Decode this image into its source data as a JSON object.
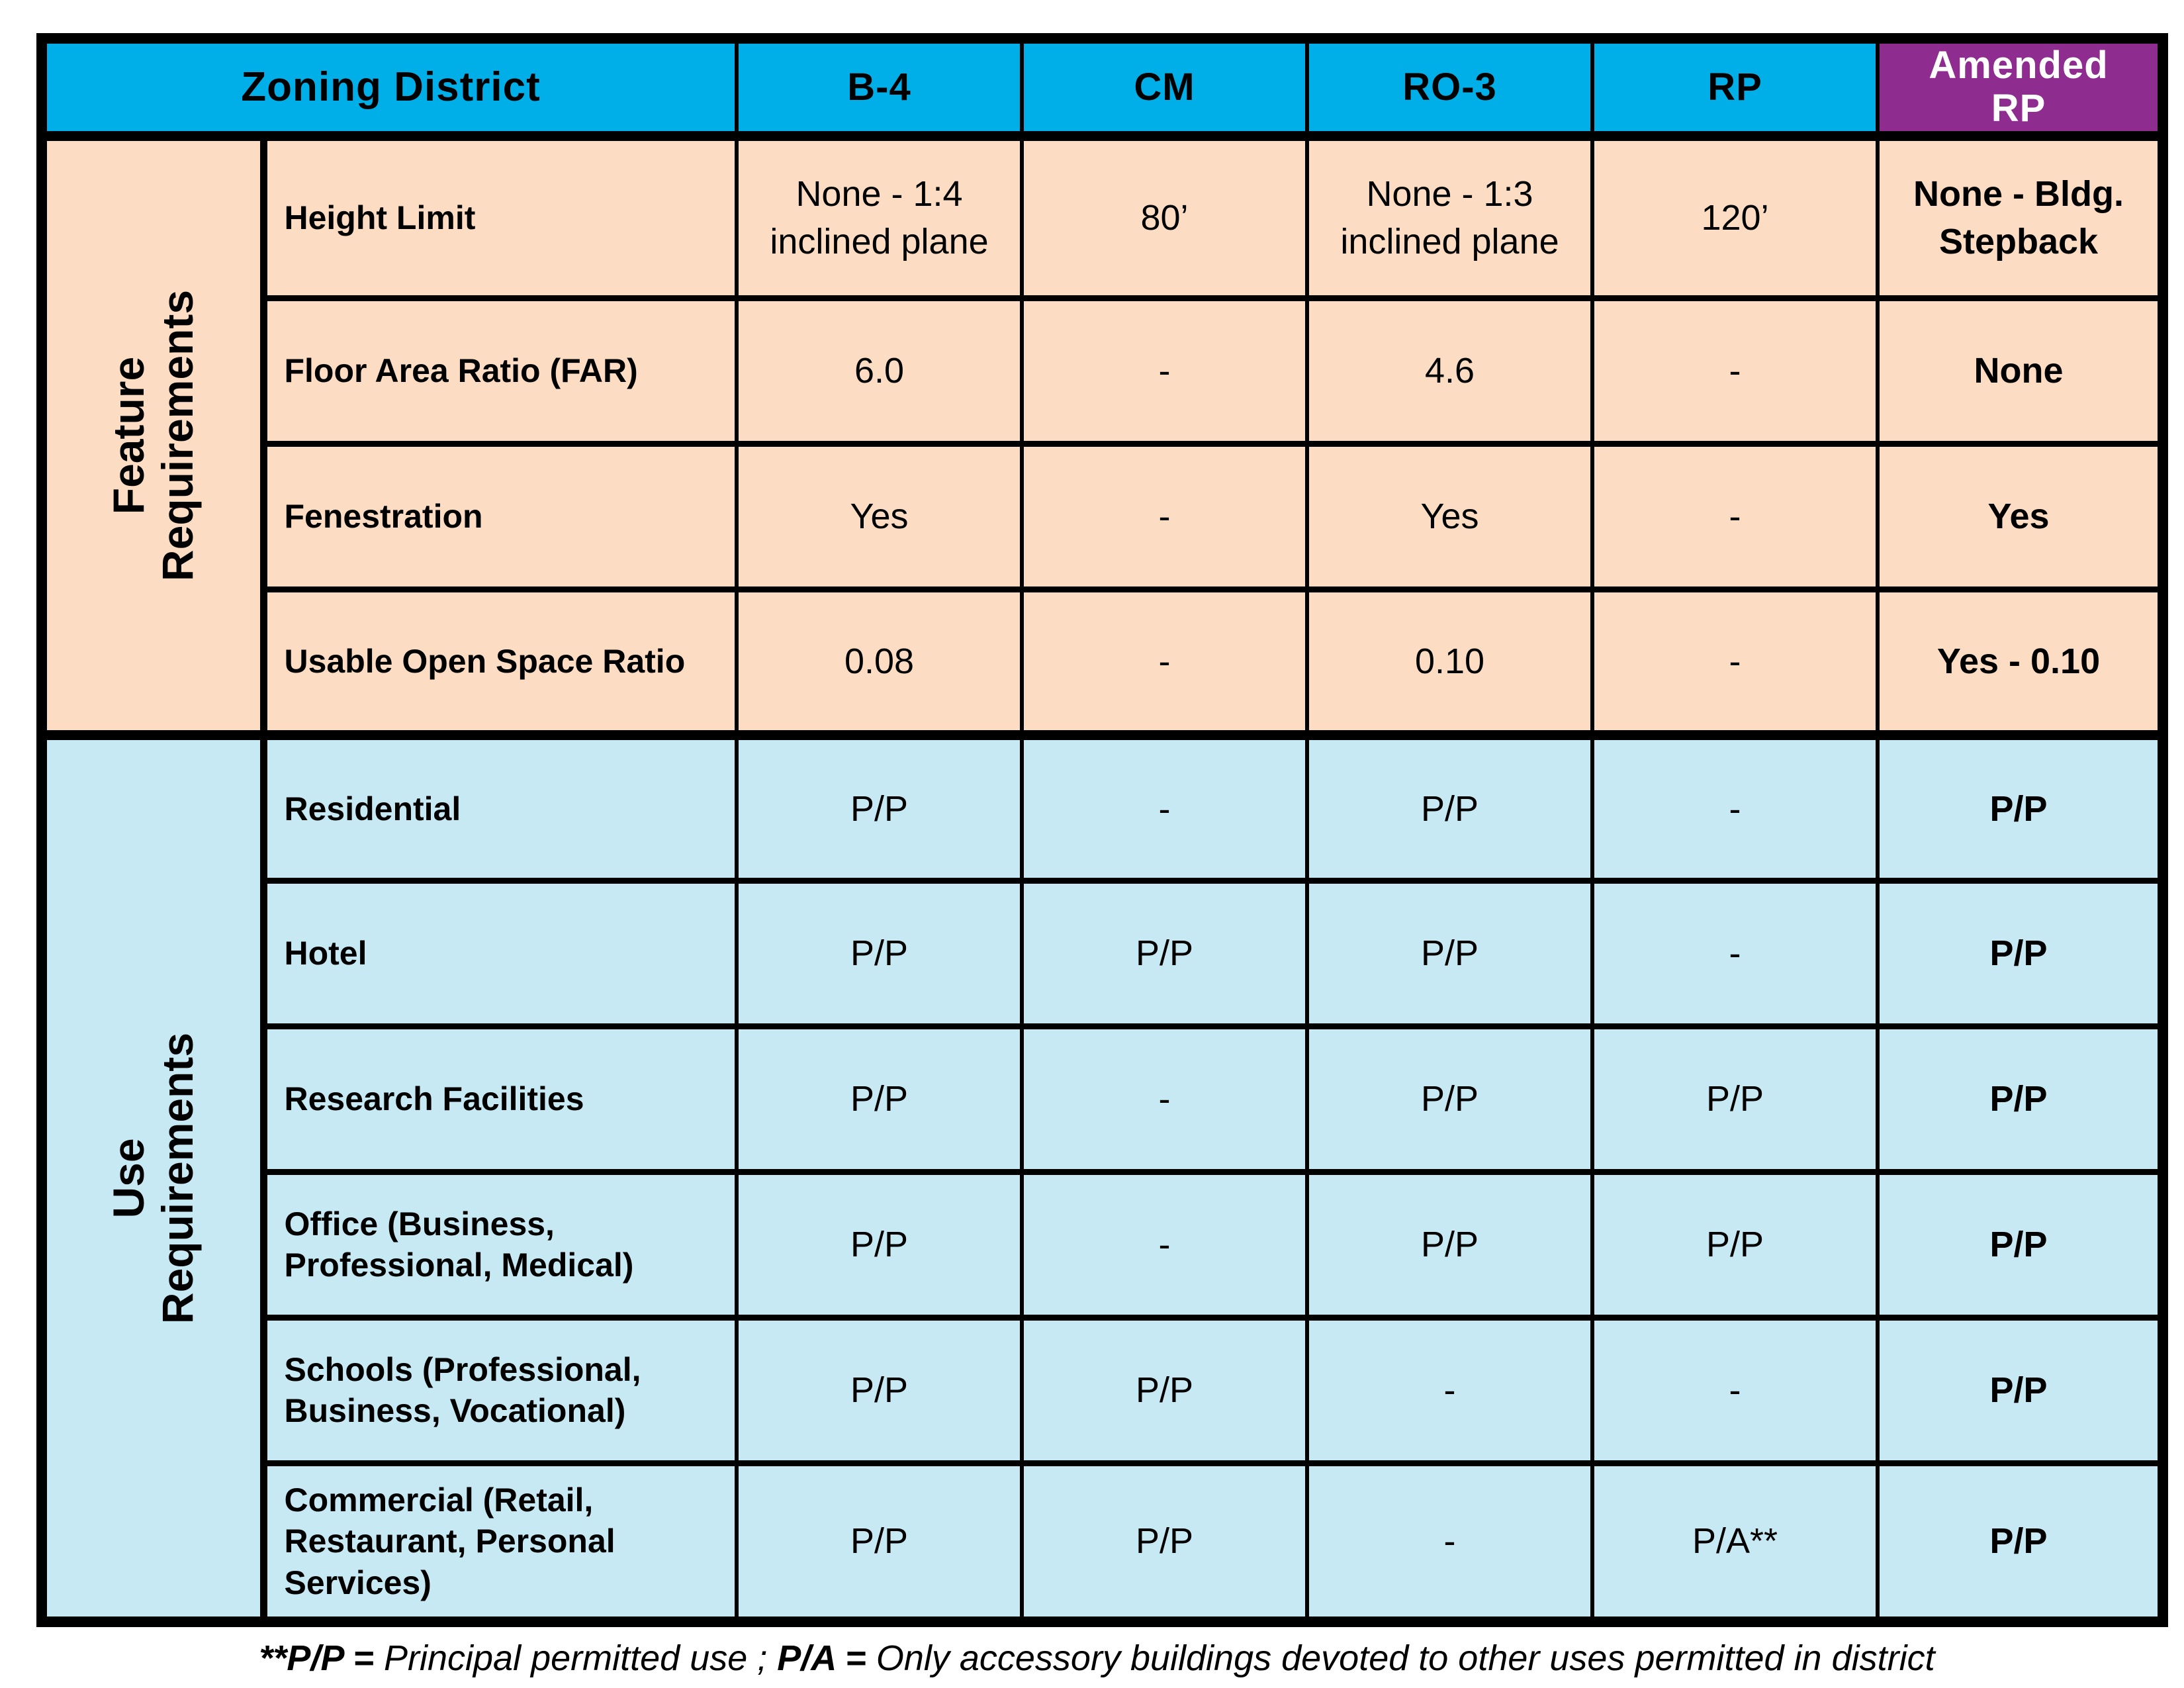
{
  "colors": {
    "header_blue": "#00AEE8",
    "header_purple": "#8E2C8F",
    "feature_section_peach": "#FCDCC3",
    "use_section_blue": "#C7E9F3",
    "border_black": "#000000",
    "amended_header_text": "#ffffff"
  },
  "chart_data": {
    "type": "table",
    "title": "Zoning District",
    "columns": [
      "B-4",
      "CM",
      "RO-3",
      "RP",
      "Amended RP"
    ],
    "sections": [
      {
        "label_lines": [
          "Feature",
          "Requirements"
        ],
        "rows": [
          {
            "label": "Height Limit",
            "values": [
              "None - 1:4 inclined plane",
              "80’",
              "None - 1:3 inclined plane",
              "120’",
              "None - Bldg. Stepback"
            ]
          },
          {
            "label": "Floor Area Ratio (FAR)",
            "values": [
              "6.0",
              "-",
              "4.6",
              "-",
              "None"
            ]
          },
          {
            "label": "Fenestration",
            "values": [
              "Yes",
              "-",
              "Yes",
              "-",
              "Yes"
            ]
          },
          {
            "label": "Usable Open Space Ratio",
            "values": [
              "0.08",
              "-",
              "0.10",
              "-",
              "Yes - 0.10"
            ]
          }
        ]
      },
      {
        "label_lines": [
          "Use",
          "Requirements"
        ],
        "rows": [
          {
            "label": "Residential",
            "values": [
              "P/P",
              "-",
              "P/P",
              "-",
              "P/P"
            ]
          },
          {
            "label": "Hotel",
            "values": [
              "P/P",
              "P/P",
              "P/P",
              "-",
              "P/P"
            ]
          },
          {
            "label": "Research Facilities",
            "values": [
              "P/P",
              "-",
              "P/P",
              "P/P",
              "P/P"
            ]
          },
          {
            "label": "Office (Business, Professional, Medical)",
            "values": [
              "P/P",
              "-",
              "P/P",
              "P/P",
              "P/P"
            ]
          },
          {
            "label": "Schools (Professional, Business, Vocational)",
            "values": [
              "P/P",
              "P/P",
              "-",
              "-",
              "P/P"
            ]
          },
          {
            "label": "Commercial (Retail, Restaurant, Personal Services)",
            "values": [
              "P/P",
              "P/P",
              "-",
              "P/A**",
              "P/P"
            ]
          }
        ]
      }
    ],
    "footnote": {
      "segments": [
        {
          "text": "**P/P = ",
          "bold": true
        },
        {
          "text": "Principal permitted use ; ",
          "bold": false
        },
        {
          "text": "P/A = ",
          "bold": true
        },
        {
          "text": " Only accessory buildings devoted to other uses permitted in district",
          "bold": false
        }
      ]
    }
  }
}
